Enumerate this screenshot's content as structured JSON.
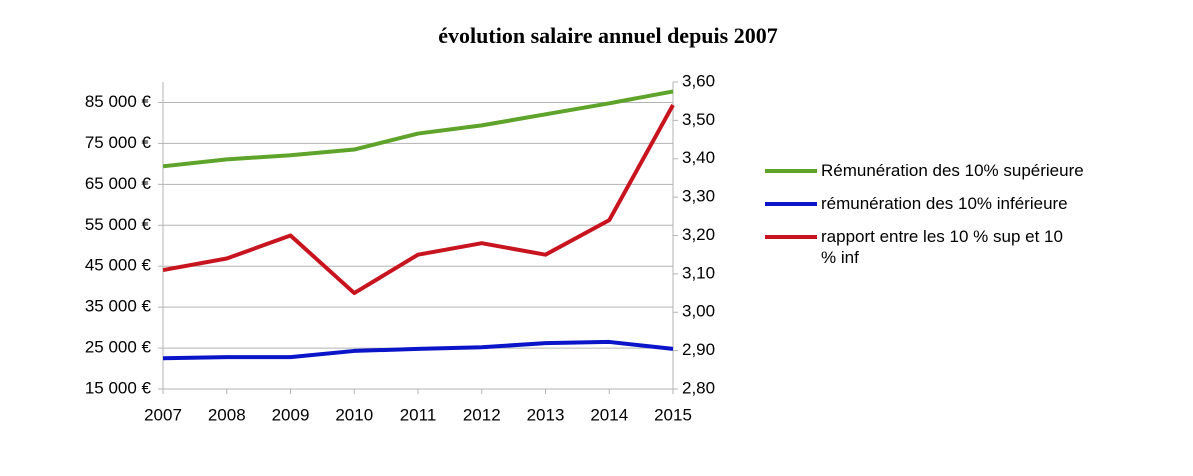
{
  "chart_data": {
    "type": "line",
    "title": "évolution salaire annuel depuis 2007",
    "categories": [
      "2007",
      "2008",
      "2009",
      "2010",
      "2011",
      "2012",
      "2013",
      "2014",
      "2015"
    ],
    "series": [
      {
        "name": "Rémunération des 10% supérieure",
        "color": "#5ea32a",
        "values": [
          69400,
          71100,
          72100,
          73500,
          77400,
          79400,
          82100,
          84800,
          87700
        ]
      },
      {
        "name": "rémunération des 10% inférieure",
        "color": "#0a14c8",
        "values": [
          22500,
          22800,
          22800,
          24300,
          24800,
          25200,
          26200,
          26500,
          24800
        ]
      },
      {
        "name": "rapport entre les 10 % sup et 10 % inf",
        "color": "#c8141e",
        "axis": "y2",
        "values": [
          3.11,
          3.14,
          3.2,
          3.05,
          3.15,
          3.18,
          3.15,
          3.24,
          3.54
        ]
      }
    ],
    "ylim": [
      15000,
      90000
    ],
    "yticks": [
      {
        "value": 15000,
        "label": "15 000 €"
      },
      {
        "value": 25000,
        "label": "25 000 €"
      },
      {
        "value": 35000,
        "label": "35 000 €"
      },
      {
        "value": 45000,
        "label": "45 000 €"
      },
      {
        "value": 55000,
        "label": "55 000 €"
      },
      {
        "value": 65000,
        "label": "65 000 €"
      },
      {
        "value": 75000,
        "label": "75 000 €"
      },
      {
        "value": 85000,
        "label": "85 000 €"
      }
    ],
    "y2lim": [
      2.8,
      3.6
    ],
    "y2ticks": [
      {
        "value": 2.8,
        "label": "2,80"
      },
      {
        "value": 2.9,
        "label": "2,90"
      },
      {
        "value": 3.0,
        "label": "3,00"
      },
      {
        "value": 3.1,
        "label": "3,10"
      },
      {
        "value": 3.2,
        "label": "3,20"
      },
      {
        "value": 3.3,
        "label": "3,30"
      },
      {
        "value": 3.4,
        "label": "3,40"
      },
      {
        "value": 3.5,
        "label": "3,50"
      },
      {
        "value": 3.6,
        "label": "3,60"
      }
    ],
    "grid": true,
    "legend": "right"
  }
}
